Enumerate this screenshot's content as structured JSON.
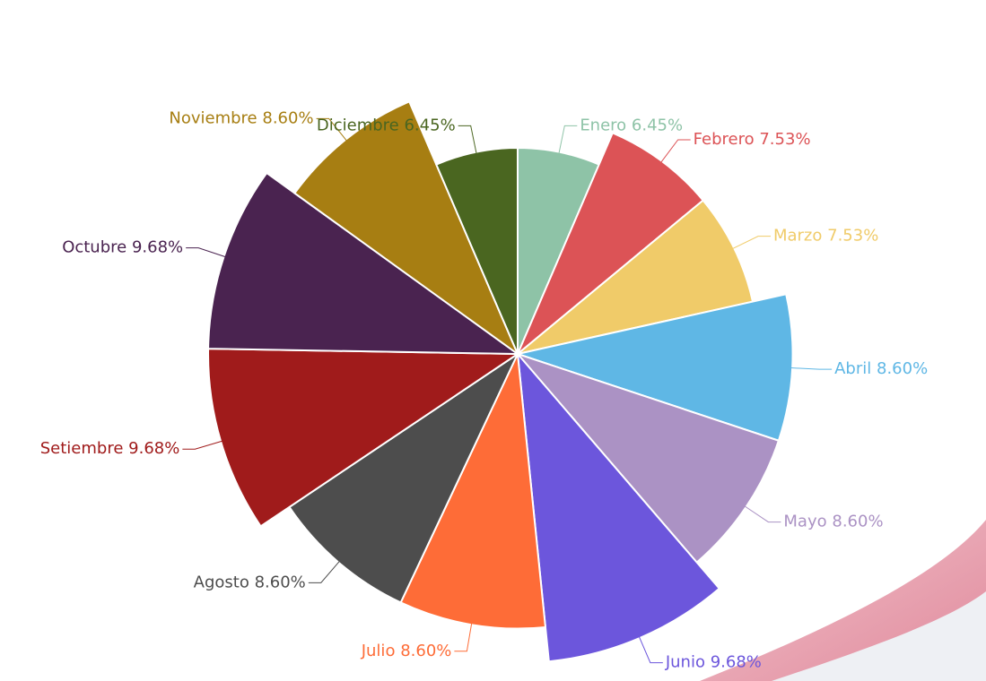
{
  "chart_data": {
    "type": "pie",
    "categories": [
      "Enero",
      "Febrero",
      "Marzo",
      "Abril",
      "Mayo",
      "Junio",
      "Julio",
      "Agosto",
      "Setiembre",
      "Octubre",
      "Noviembre",
      "Diciembre"
    ],
    "values": [
      6.45,
      7.53,
      7.53,
      8.6,
      8.6,
      9.68,
      8.6,
      8.6,
      9.68,
      9.68,
      8.6,
      6.45
    ],
    "value_labels": [
      "6.45%",
      "7.53%",
      "7.53%",
      "8.60%",
      "8.60%",
      "9.68%",
      "8.60%",
      "8.60%",
      "9.68%",
      "9.68%",
      "8.60%",
      "6.45%"
    ],
    "colors": [
      "#8ec3a7",
      "#dc5356",
      "#f0cb69",
      "#5fb7e5",
      "#ab92c4",
      "#6c56dc",
      "#fe6c37",
      "#4d4d4d",
      "#a01b1b",
      "#4a2350",
      "#a77e12",
      "#4a6620"
    ]
  }
}
